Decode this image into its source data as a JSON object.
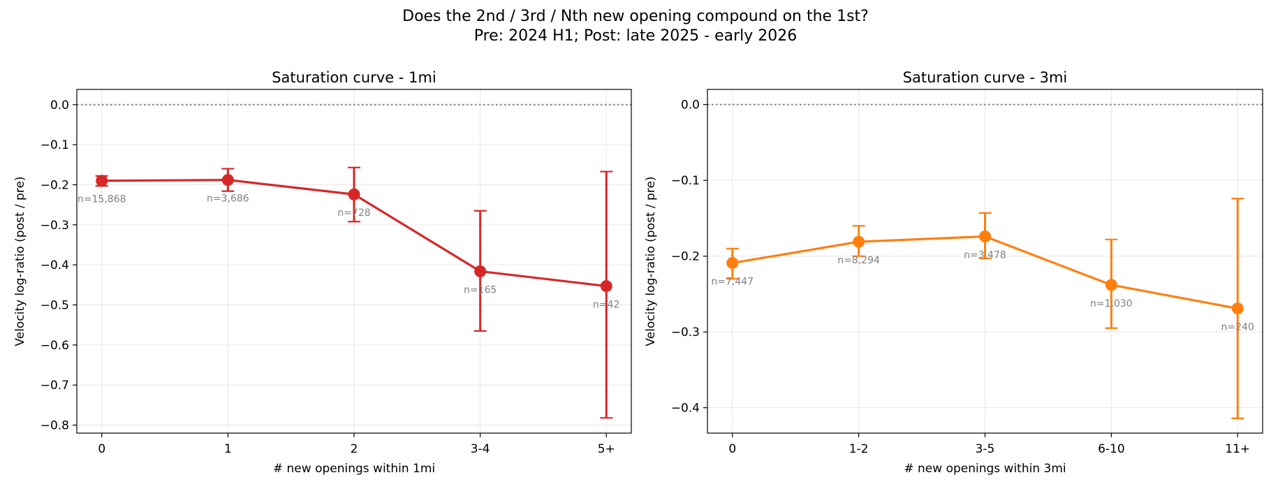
{
  "figure": {
    "suptitle_line1": "Does the 2nd / 3rd / Nth new opening compound on the 1st?",
    "suptitle_line2": "Pre: 2024 H1; Post: late 2025 - early 2026"
  },
  "colors": {
    "series_1mi": "#d62728",
    "series_3mi": "#ff7f0e",
    "zero_line": "#888888",
    "n_label": "#808080",
    "grid": "#e6e6e6"
  },
  "chart_data": [
    {
      "type": "line",
      "title": "Saturation curve - 1mi",
      "xlabel": "# new openings within 1mi",
      "ylabel": "Velocity log-ratio (post / pre)",
      "categories": [
        "0",
        "1",
        "2",
        "3-4",
        "5+"
      ],
      "values": [
        -0.19,
        -0.188,
        -0.224,
        -0.416,
        -0.453
      ],
      "err_low": [
        -0.203,
        -0.216,
        -0.292,
        -0.565,
        -0.782
      ],
      "err_high": [
        -0.178,
        -0.16,
        -0.157,
        -0.265,
        -0.167
      ],
      "n_labels": [
        "n=15,868",
        "n=3,686",
        "n=728",
        "n=165",
        "n=42"
      ],
      "yticks": [
        0.0,
        -0.1,
        -0.2,
        -0.3,
        -0.4,
        -0.5,
        -0.6,
        -0.7,
        -0.8
      ],
      "ytick_labels": [
        "0.0",
        "−0.1",
        "−0.2",
        "−0.3",
        "−0.4",
        "−0.5",
        "−0.6",
        "−0.7",
        "−0.8"
      ],
      "ylim": [
        -0.82,
        0.038
      ],
      "zero_line": true,
      "grid": true
    },
    {
      "type": "line",
      "title": "Saturation curve - 3mi",
      "xlabel": "# new openings within 3mi",
      "ylabel": "Velocity log-ratio (post / pre)",
      "categories": [
        "0",
        "1-2",
        "3-5",
        "6-10",
        "11+"
      ],
      "values": [
        -0.209,
        -0.181,
        -0.174,
        -0.238,
        -0.269
      ],
      "err_low": [
        -0.23,
        -0.2,
        -0.203,
        -0.295,
        -0.414
      ],
      "err_high": [
        -0.19,
        -0.16,
        -0.143,
        -0.178,
        -0.124
      ],
      "n_labels": [
        "n=7,447",
        "n=8,294",
        "n=3,478",
        "n=1,030",
        "n=240"
      ],
      "yticks": [
        0.0,
        -0.1,
        -0.2,
        -0.3,
        -0.4
      ],
      "ytick_labels": [
        "0.0",
        "−0.1",
        "−0.2",
        "−0.3",
        "−0.4"
      ],
      "ylim": [
        -0.4335,
        0.02
      ],
      "zero_line": true,
      "grid": true
    }
  ]
}
